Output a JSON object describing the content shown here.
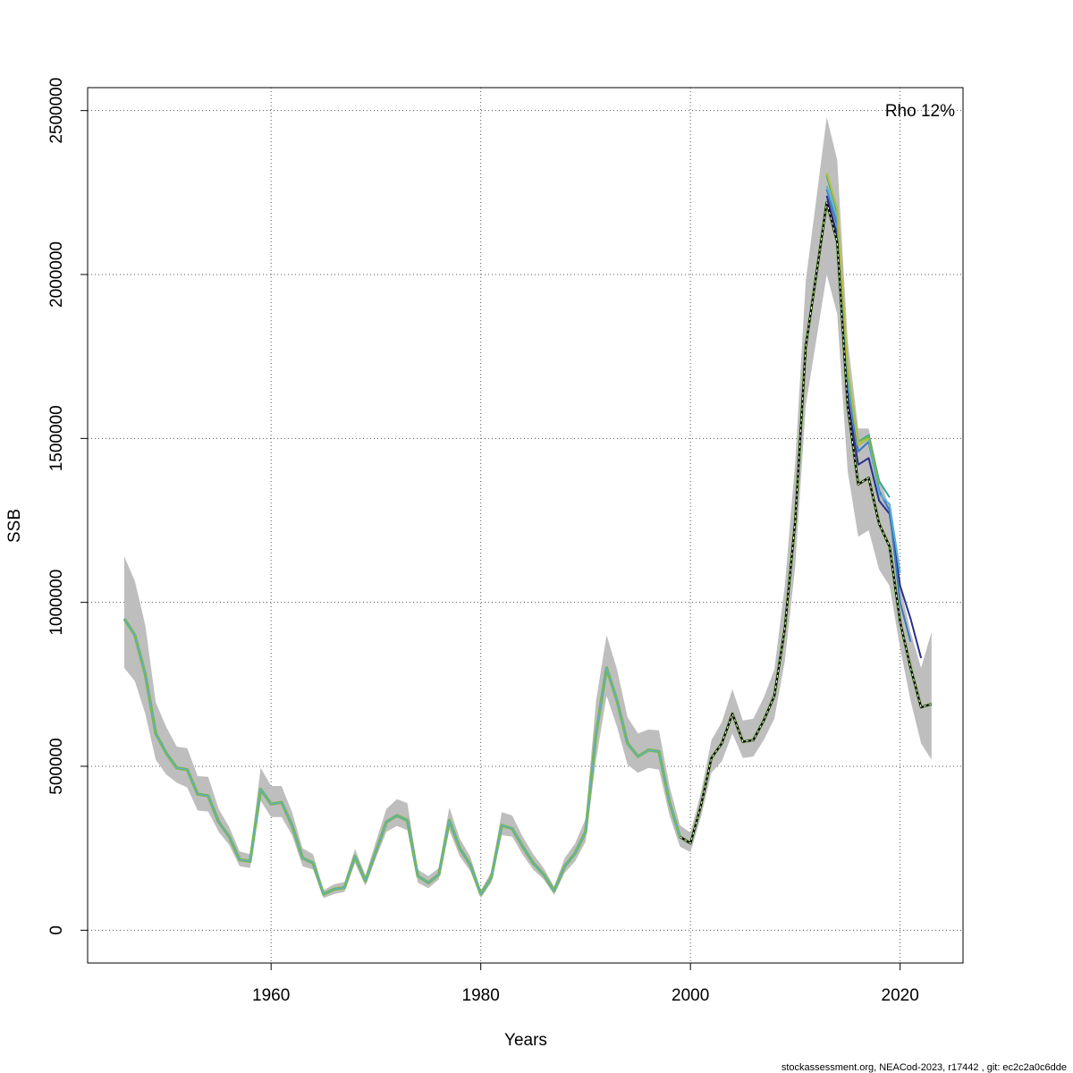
{
  "chart_data": {
    "type": "line",
    "xlabel": "Years",
    "ylabel": "SSB",
    "annotation": "Rho 12%",
    "footer": "stockassessment.org, NEACod-2023, r17442 , git: ec2c2a0c6dde",
    "xlim": [
      1942.5,
      2026
    ],
    "ylim": [
      -100000,
      2570000
    ],
    "x_ticks": [
      1960,
      1980,
      2000,
      2020
    ],
    "y_ticks": [
      0,
      500000,
      1000000,
      1500000,
      2000000,
      2500000
    ],
    "grid": true,
    "colors": {
      "band": "#bebebe",
      "final": "#000000",
      "peel_colors": [
        "#2a2f8a",
        "#3a7bbf",
        "#5ab0d8",
        "#2aa89a",
        "#7ab648",
        "#b5bd3a"
      ]
    },
    "years": [
      1946,
      1947,
      1948,
      1949,
      1950,
      1951,
      1952,
      1953,
      1954,
      1955,
      1956,
      1957,
      1958,
      1959,
      1960,
      1961,
      1962,
      1963,
      1964,
      1965,
      1966,
      1967,
      1968,
      1969,
      1970,
      1971,
      1972,
      1973,
      1974,
      1975,
      1976,
      1977,
      1978,
      1979,
      1980,
      1981,
      1982,
      1983,
      1984,
      1985,
      1986,
      1987,
      1988,
      1989,
      1990,
      1991,
      1992,
      1993,
      1994,
      1995,
      1996,
      1997,
      1998,
      1999,
      2000,
      2001,
      2002,
      2003,
      2004,
      2005,
      2006,
      2007,
      2008,
      2009,
      2010,
      2011,
      2012,
      2013,
      2014,
      2015,
      2016,
      2017,
      2018,
      2019,
      2020,
      2021,
      2022,
      2023
    ],
    "ssb": [
      950000,
      900000,
      780000,
      600000,
      540000,
      495000,
      490000,
      415000,
      410000,
      330000,
      285000,
      215000,
      210000,
      430000,
      385000,
      390000,
      320000,
      220000,
      205000,
      110000,
      125000,
      130000,
      225000,
      150000,
      240000,
      330000,
      350000,
      335000,
      165000,
      145000,
      170000,
      335000,
      250000,
      200000,
      110000,
      160000,
      320000,
      310000,
      255000,
      205000,
      170000,
      120000,
      195000,
      235000,
      300000,
      600000,
      800000,
      700000,
      570000,
      530000,
      550000,
      545000,
      390000,
      285000,
      265000,
      380000,
      525000,
      570000,
      660000,
      575000,
      580000,
      640000,
      715000,
      920000,
      1250000,
      1780000,
      2000000,
      2220000,
      2100000,
      1600000,
      1360000,
      1380000,
      1240000,
      1170000,
      940000,
      800000,
      680000,
      690000
    ],
    "lower": [
      800000,
      760000,
      660000,
      520000,
      475000,
      450000,
      435000,
      365000,
      362000,
      300000,
      260000,
      195000,
      190000,
      395000,
      345000,
      345000,
      290000,
      195000,
      185000,
      98000,
      110000,
      117000,
      205000,
      135000,
      220000,
      300000,
      318000,
      305000,
      145000,
      128000,
      155000,
      305000,
      225000,
      180000,
      98000,
      145000,
      290000,
      285000,
      230000,
      185000,
      155000,
      108000,
      175000,
      210000,
      270000,
      520000,
      715000,
      620000,
      505000,
      480000,
      495000,
      490000,
      350000,
      255000,
      238000,
      345000,
      480000,
      515000,
      600000,
      525000,
      530000,
      580000,
      645000,
      820000,
      1110000,
      1600000,
      1800000,
      2000000,
      1880000,
      1400000,
      1200000,
      1220000,
      1100000,
      1050000,
      860000,
      700000,
      570000,
      520000
    ],
    "upper": [
      1140000,
      1065000,
      930000,
      695000,
      620000,
      560000,
      555000,
      470000,
      468000,
      370000,
      315000,
      240000,
      232000,
      495000,
      440000,
      440000,
      360000,
      250000,
      232000,
      122000,
      140000,
      147000,
      248000,
      168000,
      270000,
      370000,
      400000,
      388000,
      185000,
      165000,
      190000,
      375000,
      280000,
      225000,
      122000,
      178000,
      360000,
      350000,
      285000,
      232000,
      190000,
      134000,
      220000,
      265000,
      340000,
      700000,
      900000,
      795000,
      650000,
      600000,
      612000,
      610000,
      440000,
      320000,
      298000,
      420000,
      580000,
      635000,
      735000,
      640000,
      645000,
      710000,
      795000,
      1050000,
      1430000,
      1980000,
      2230000,
      2480000,
      2350000,
      1800000,
      1530000,
      1530000,
      1380000,
      1290000,
      1050000,
      910000,
      800000,
      910000
    ],
    "peels": [
      {
        "years": [
          2013,
          2014,
          2015,
          2016,
          2017,
          2018,
          2019,
          2020,
          2021,
          2022
        ],
        "values": [
          2240000,
          2120000,
          1620000,
          1420000,
          1440000,
          1310000,
          1270000,
          1050000,
          950000,
          830000
        ]
      },
      {
        "years": [
          2013,
          2014,
          2015,
          2016,
          2017,
          2018,
          2019,
          2020,
          2021
        ],
        "values": [
          2260000,
          2150000,
          1660000,
          1460000,
          1490000,
          1340000,
          1280000,
          1000000,
          880000
        ]
      },
      {
        "years": [
          2013,
          2014,
          2015,
          2016,
          2017,
          2018,
          2019,
          2020
        ],
        "values": [
          2270000,
          2170000,
          1680000,
          1480000,
          1500000,
          1330000,
          1300000,
          1090000
        ]
      },
      {
        "years": [
          2013,
          2014,
          2015,
          2016,
          2017,
          2018,
          2019
        ],
        "values": [
          2300000,
          2190000,
          1700000,
          1490000,
          1510000,
          1370000,
          1320000
        ]
      },
      {
        "years": [
          2013,
          2014,
          2015,
          2016,
          2017,
          2018
        ],
        "values": [
          2305000,
          2200000,
          1710000,
          1490000,
          1505000,
          1360000
        ]
      },
      {
        "years": [
          2013,
          2014,
          2015,
          2016,
          2017
        ],
        "values": [
          2310000,
          2200000,
          1720000,
          1480000,
          1500000
        ]
      }
    ]
  }
}
